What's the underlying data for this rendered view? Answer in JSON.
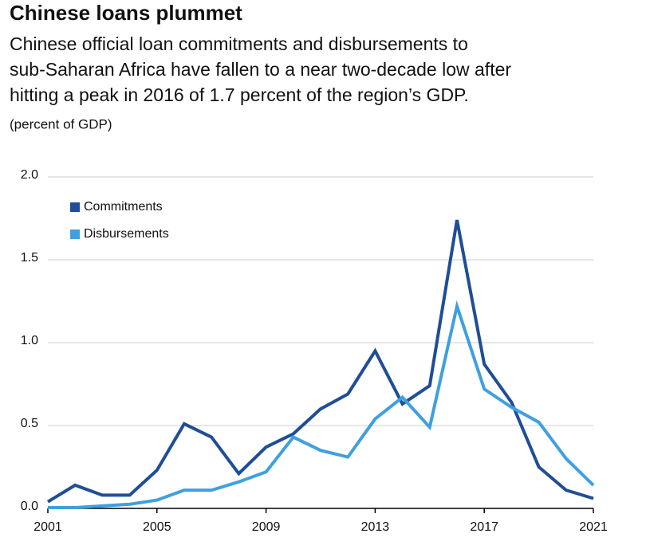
{
  "chart_data": {
    "type": "line",
    "title": "Chinese loans plummet",
    "subtitle": [
      "Chinese official loan commitments and disbursements to",
      "sub-Saharan Africa have fallen to a near two-decade low after",
      "hitting a peak in 2016 of 1.7 percent of the region’s GDP."
    ],
    "y_label": "(percent of GDP)",
    "x": [
      2001,
      2002,
      2003,
      2004,
      2005,
      2006,
      2007,
      2008,
      2009,
      2010,
      2011,
      2012,
      2013,
      2014,
      2015,
      2016,
      2017,
      2018,
      2019,
      2020,
      2021
    ],
    "series": [
      {
        "name": "Commitments",
        "color": "#1f4e96",
        "values": [
          0.04,
          0.14,
          0.08,
          0.08,
          0.23,
          0.51,
          0.43,
          0.21,
          0.37,
          0.45,
          0.6,
          0.69,
          0.95,
          0.63,
          0.74,
          1.74,
          0.87,
          0.64,
          0.25,
          0.11,
          0.06
        ]
      },
      {
        "name": "Disbursements",
        "color": "#3fa0e0",
        "values": [
          0.005,
          0.005,
          0.015,
          0.025,
          0.05,
          0.11,
          0.11,
          0.16,
          0.22,
          0.43,
          0.35,
          0.31,
          0.54,
          0.67,
          0.49,
          1.22,
          0.72,
          0.61,
          0.52,
          0.3,
          0.14
        ]
      }
    ],
    "xlim": [
      2001,
      2021
    ],
    "xticks": [
      2001,
      2005,
      2009,
      2013,
      2017,
      2021
    ],
    "ylim": [
      0,
      2
    ],
    "yticks": [
      {
        "value": 0,
        "label": "0.0"
      },
      0.5,
      {
        "value": 1,
        "label": "1.0"
      },
      1.5,
      {
        "value": 2,
        "label": "2.0"
      }
    ],
    "grid": true,
    "legend": "upper left"
  }
}
